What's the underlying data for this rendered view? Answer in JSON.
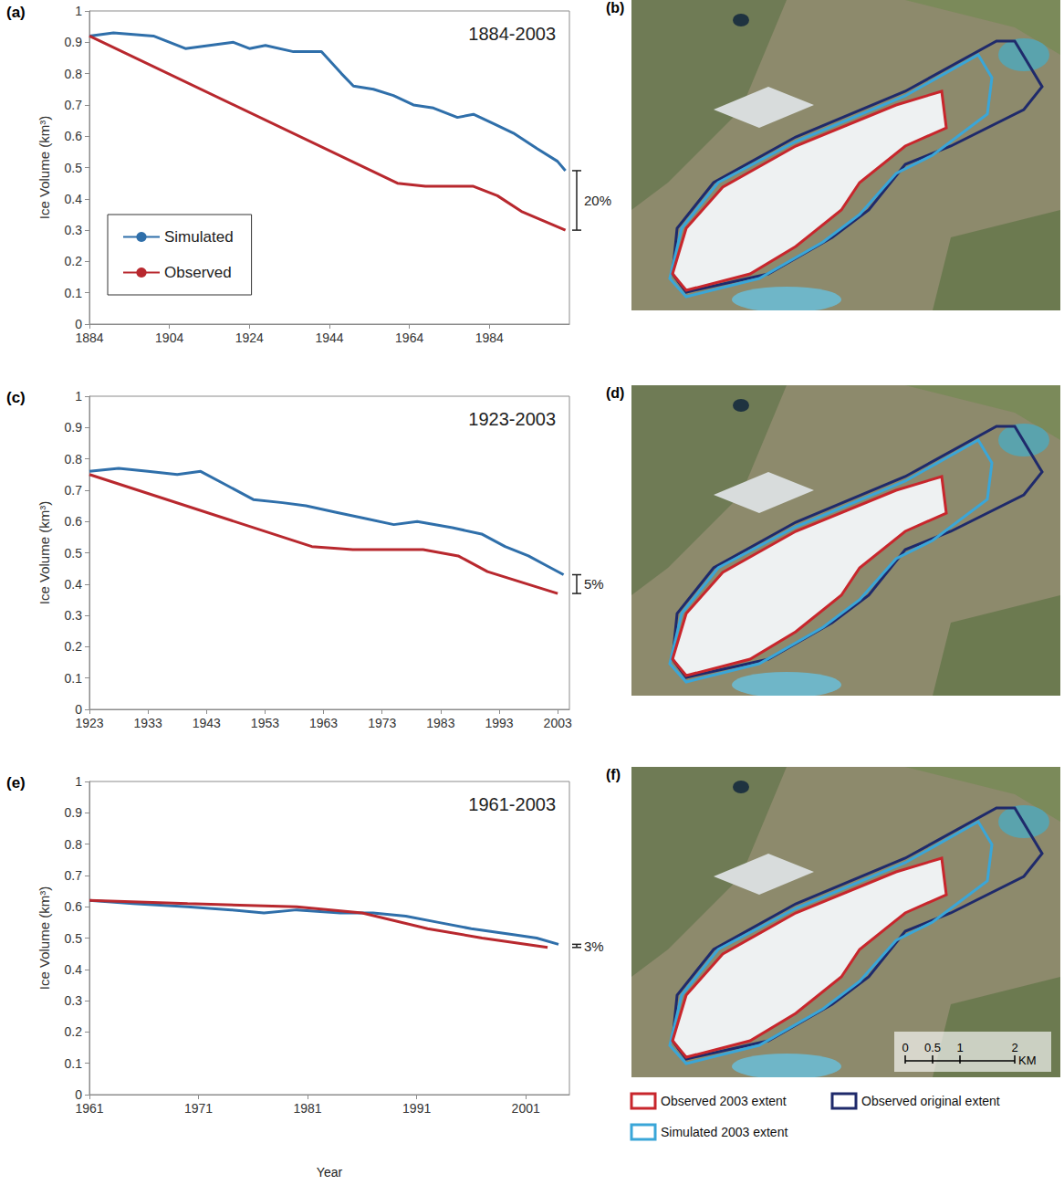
{
  "chart_data": [
    {
      "type": "line",
      "panel": "(a)",
      "title": "1884-2003",
      "ylabel": "Ice Volume (km³)",
      "xlim": [
        1884,
        2004
      ],
      "xticks": [
        1884,
        1904,
        1924,
        1944,
        1964,
        1984
      ],
      "ylim": [
        0,
        1
      ],
      "yticks": [
        0,
        0.1,
        0.2,
        0.3,
        0.4,
        0.5,
        0.6,
        0.7,
        0.8,
        0.9,
        1
      ],
      "grid": false,
      "legend": "lower left",
      "series": [
        {
          "name": "Simulated",
          "color": "#2f6faa",
          "x": [
            1884,
            1890,
            1900,
            1908,
            1920,
            1924,
            1928,
            1935,
            1942,
            1947,
            1950,
            1955,
            1960,
            1965,
            1970,
            1976,
            1980,
            1985,
            1990,
            1996,
            2001,
            2003
          ],
          "values": [
            0.92,
            0.93,
            0.92,
            0.88,
            0.9,
            0.88,
            0.89,
            0.87,
            0.87,
            0.8,
            0.76,
            0.75,
            0.73,
            0.7,
            0.69,
            0.66,
            0.67,
            0.64,
            0.61,
            0.56,
            0.52,
            0.49
          ]
        },
        {
          "name": "Observed",
          "color": "#b8282e",
          "x": [
            1884,
            1961,
            1968,
            1980,
            1986,
            1992,
            2003
          ],
          "values": [
            0.92,
            0.45,
            0.44,
            0.44,
            0.41,
            0.36,
            0.3
          ]
        }
      ],
      "annotation": {
        "text": "20%",
        "from": 0.3,
        "to": 0.49
      }
    },
    {
      "type": "line",
      "panel": "(c)",
      "title": "1923-2003",
      "ylabel": "Ice Volume (km³)",
      "xlim": [
        1923,
        2005
      ],
      "xticks": [
        1923,
        1933,
        1943,
        1953,
        1963,
        1973,
        1983,
        1993,
        2003
      ],
      "ylim": [
        0,
        1
      ],
      "yticks": [
        0,
        0.1,
        0.2,
        0.3,
        0.4,
        0.5,
        0.6,
        0.7,
        0.8,
        0.9,
        1
      ],
      "grid": false,
      "series": [
        {
          "name": "Simulated",
          "color": "#2f6faa",
          "x": [
            1923,
            1928,
            1933,
            1938,
            1942,
            1946,
            1951,
            1956,
            1960,
            1965,
            1970,
            1975,
            1979,
            1985,
            1990,
            1994,
            1998,
            2001,
            2004
          ],
          "values": [
            0.76,
            0.77,
            0.76,
            0.75,
            0.76,
            0.72,
            0.67,
            0.66,
            0.65,
            0.63,
            0.61,
            0.59,
            0.6,
            0.58,
            0.56,
            0.52,
            0.49,
            0.46,
            0.43
          ]
        },
        {
          "name": "Observed",
          "color": "#b8282e",
          "x": [
            1923,
            1961,
            1968,
            1980,
            1986,
            1991,
            2003
          ],
          "values": [
            0.75,
            0.52,
            0.51,
            0.51,
            0.49,
            0.44,
            0.37
          ]
        }
      ],
      "annotation": {
        "text": "5%",
        "from": 0.37,
        "to": 0.43
      }
    },
    {
      "type": "line",
      "panel": "(e)",
      "title": "1961-2003",
      "ylabel": "Ice Volume (km³)",
      "xlabel": "Year",
      "xlim": [
        1961,
        2005
      ],
      "xticks": [
        1961,
        1971,
        1981,
        1991,
        2001
      ],
      "ylim": [
        0,
        1
      ],
      "yticks": [
        0,
        0.1,
        0.2,
        0.3,
        0.4,
        0.5,
        0.6,
        0.7,
        0.8,
        0.9,
        1
      ],
      "grid": false,
      "series": [
        {
          "name": "Simulated",
          "color": "#2f6faa",
          "x": [
            1961,
            1965,
            1970,
            1974,
            1977,
            1980,
            1984,
            1987,
            1990,
            1993,
            1996,
            2000,
            2002,
            2004
          ],
          "values": [
            0.62,
            0.61,
            0.6,
            0.59,
            0.58,
            0.59,
            0.58,
            0.58,
            0.57,
            0.55,
            0.53,
            0.51,
            0.5,
            0.48
          ]
        },
        {
          "name": "Observed",
          "color": "#b8282e",
          "x": [
            1961,
            1970,
            1980,
            1986,
            1992,
            1997,
            2003
          ],
          "values": [
            0.62,
            0.61,
            0.6,
            0.58,
            0.53,
            0.5,
            0.47
          ]
        }
      ],
      "annotation": {
        "text": "3%",
        "from": 0.47,
        "to": 0.48
      }
    }
  ],
  "maps": [
    {
      "panel": "(b)"
    },
    {
      "panel": "(d)"
    },
    {
      "panel": "(f)",
      "scale_bar": {
        "ticks": [
          0,
          0.5,
          1,
          2
        ],
        "unit": "KM"
      }
    }
  ],
  "map_legend": [
    {
      "name": "Observed 2003 extent",
      "color": "#c8262c"
    },
    {
      "name": "Observed original extent",
      "color": "#1f2a6b"
    },
    {
      "name": "Simulated 2003 extent",
      "color": "#3aa6d8"
    }
  ]
}
